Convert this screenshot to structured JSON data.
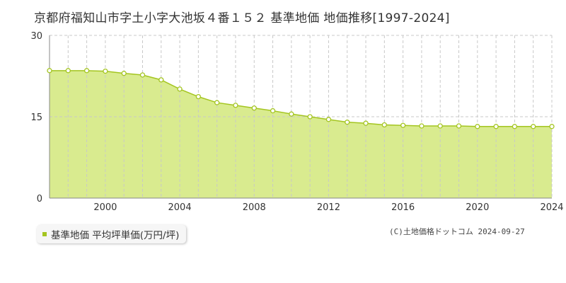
{
  "title": "京都府福知山市字土小字大池坂４番１５２ 基準地価 地価推移[1997-2024]",
  "legend": {
    "label": "基準地価 平均坪単価(万円/坪)"
  },
  "credit": "(C)土地価格ドットコム 2024-09-27",
  "colors": {
    "area_fill": "#d9eb8f",
    "line": "#a4c520",
    "marker_fill": "#ffffff",
    "grid": "#c8c8c8",
    "axis": "#888888"
  },
  "chart_data": {
    "type": "area",
    "title": "京都府福知山市字土小字大池坂４番１５２ 基準地価 地価推移[1997-2024]",
    "xlabel": "",
    "ylabel": "",
    "xlim": [
      1997,
      2024
    ],
    "ylim": [
      0,
      30
    ],
    "y_ticks": [
      0,
      15,
      30
    ],
    "x_ticks": [
      2000,
      2004,
      2008,
      2012,
      2016,
      2020,
      2024
    ],
    "grid": true,
    "legend_position": "bottom-left",
    "series": [
      {
        "name": "基準地価 平均坪単価(万円/坪)",
        "x": [
          1997,
          1998,
          1999,
          2000,
          2001,
          2002,
          2003,
          2004,
          2005,
          2006,
          2007,
          2008,
          2009,
          2010,
          2011,
          2012,
          2013,
          2014,
          2015,
          2016,
          2017,
          2018,
          2019,
          2020,
          2021,
          2022,
          2023,
          2024
        ],
        "values": [
          23.5,
          23.5,
          23.5,
          23.4,
          23.0,
          22.7,
          21.8,
          20.1,
          18.7,
          17.6,
          17.1,
          16.6,
          16.1,
          15.5,
          15.0,
          14.5,
          14.0,
          13.8,
          13.5,
          13.4,
          13.3,
          13.3,
          13.3,
          13.2,
          13.2,
          13.2,
          13.2,
          13.2
        ]
      }
    ]
  }
}
